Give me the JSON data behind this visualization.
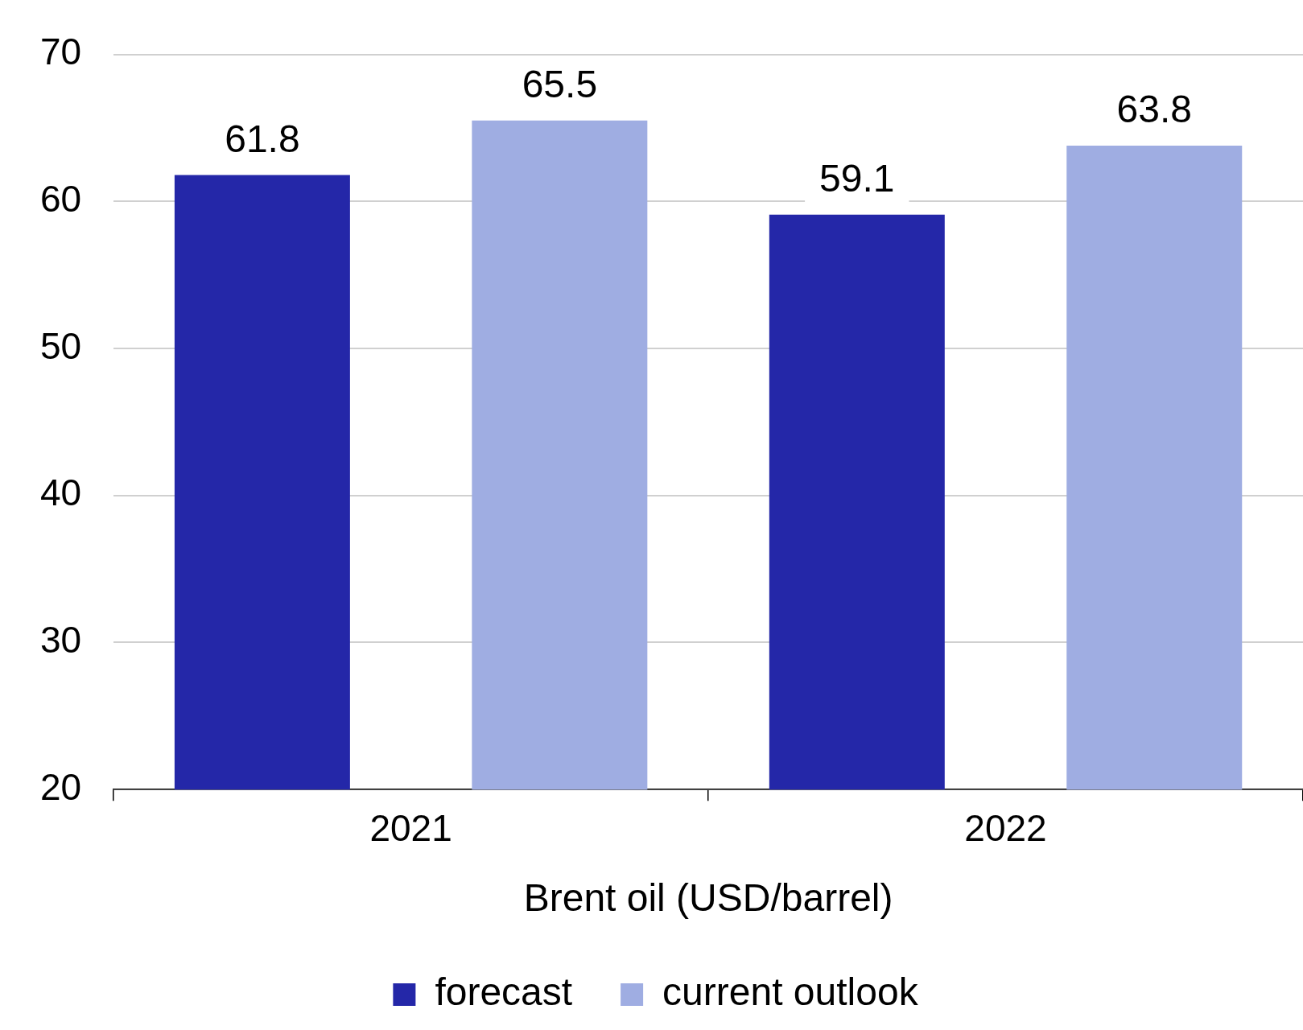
{
  "chart_data": {
    "type": "bar",
    "xlabel": "Brent oil (USD/barrel)",
    "categories": [
      "2021",
      "2022"
    ],
    "series": [
      {
        "name": "forecast",
        "color": "#2427a8",
        "values": [
          61.8,
          59.1
        ]
      },
      {
        "name": "current outlook",
        "color": "#9fade2",
        "values": [
          65.5,
          63.8
        ]
      }
    ],
    "ylim": [
      20,
      70
    ],
    "yticks": [
      20,
      30,
      40,
      50,
      60,
      70
    ],
    "grid": "y",
    "legend": "bottom",
    "data_labels": true
  }
}
